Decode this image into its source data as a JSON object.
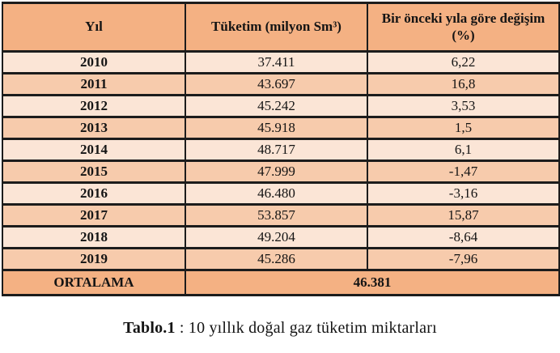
{
  "table": {
    "headers": {
      "year": "Yıl",
      "consumption": "Tüketim (milyon Sm³)",
      "change": "Bir önceki yıla göre değişim (%)"
    },
    "rows": [
      {
        "year": "2010",
        "consumption": "37.411",
        "change": "6,22"
      },
      {
        "year": "2011",
        "consumption": "43.697",
        "change": "16,8"
      },
      {
        "year": "2012",
        "consumption": "45.242",
        "change": "3,53"
      },
      {
        "year": "2013",
        "consumption": "45.918",
        "change": "1,5"
      },
      {
        "year": "2014",
        "consumption": "48.717",
        "change": "6,1"
      },
      {
        "year": "2015",
        "consumption": "47.999",
        "change": "-1,47"
      },
      {
        "year": "2016",
        "consumption": "46.480",
        "change": "-3,16"
      },
      {
        "year": "2017",
        "consumption": "53.857",
        "change": "15,87"
      },
      {
        "year": "2018",
        "consumption": "49.204",
        "change": "-8,64"
      },
      {
        "year": "2019",
        "consumption": "45.286",
        "change": "-7,96"
      }
    ],
    "footer": {
      "label": "ORTALAMA",
      "average": "46.381"
    }
  },
  "caption": {
    "label": "Tablo.1",
    "text": " : 10 yıllık doğal gaz tüketim miktarları"
  },
  "colors": {
    "header-bg": "#f4b183",
    "row-light": "#fbe5d6",
    "row-medium": "#f7cbac",
    "footer-bg": "#f4b183",
    "border": "#1c1c1c",
    "text": "#141414",
    "page-bg": "#ffffff"
  },
  "chart_data": {
    "type": "table",
    "title": "Tablo.1 : 10 yıllık doğal gaz tüketim miktarları",
    "columns": [
      "Yıl",
      "Tüketim (milyon Sm³)",
      "Bir önceki yıla göre değişim (%)"
    ],
    "years": [
      2010,
      2011,
      2012,
      2013,
      2014,
      2015,
      2016,
      2017,
      2018,
      2019
    ],
    "consumption_million_sm3": [
      37.411,
      43.697,
      45.242,
      45.918,
      48.717,
      47.999,
      46.48,
      53.857,
      49.204,
      45.286
    ],
    "change_vs_previous_year_pct": [
      6.22,
      16.8,
      3.53,
      1.5,
      6.1,
      -1.47,
      -3.16,
      15.87,
      -8.64,
      -7.96
    ],
    "average_consumption": 46.381
  }
}
